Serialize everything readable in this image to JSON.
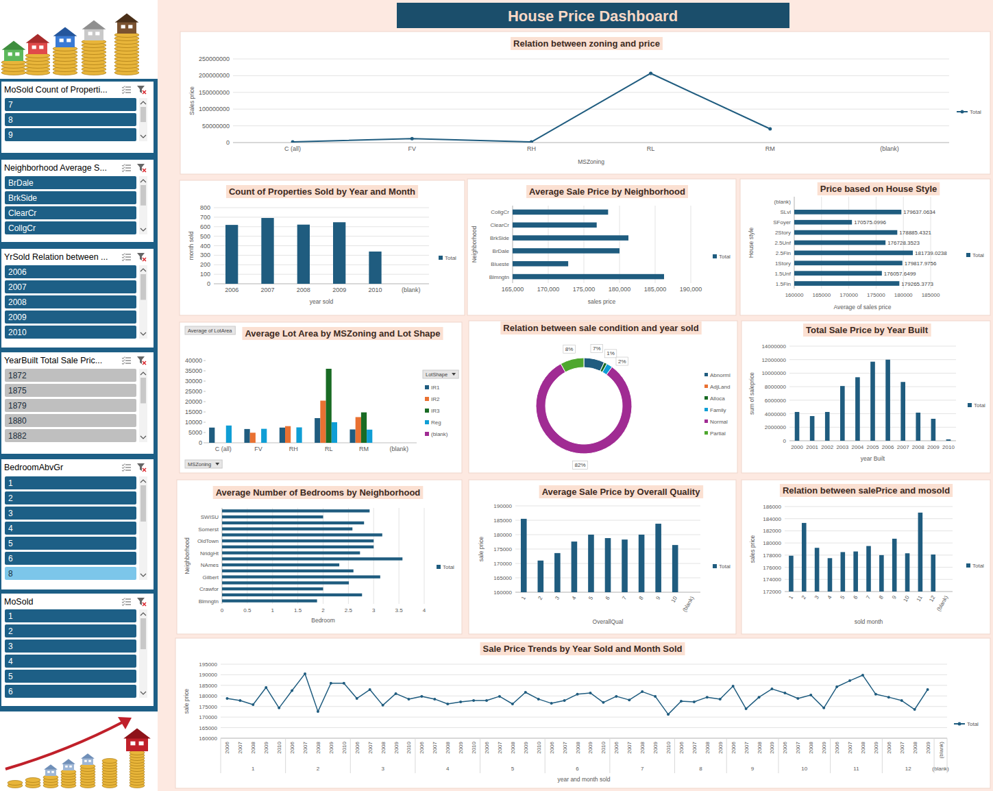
{
  "header": {
    "title": "House Price Dashboard"
  },
  "slicers": [
    {
      "title": "MoSold Count of Properti...",
      "items": [
        "7",
        "8",
        "9"
      ],
      "colors": [
        "#1d5f86",
        "#1d5f86",
        "#1d5f86"
      ]
    },
    {
      "title": "Neighborhood Average S...",
      "items": [
        "BrDale",
        "BrkSide",
        "ClearCr",
        "CollgCr"
      ],
      "colors": [
        "#1d5f86",
        "#1d5f86",
        "#1d5f86",
        "#1d5f86"
      ]
    },
    {
      "title": "YrSold Relation between ...",
      "items": [
        "2006",
        "2007",
        "2008",
        "2009",
        "2010"
      ],
      "colors": [
        "#1d5f86",
        "#1d5f86",
        "#1d5f86",
        "#1d5f86",
        "#1d5f86"
      ]
    },
    {
      "title": "YearBuilt Total Sale Pric...",
      "items": [
        "1872",
        "1875",
        "1879",
        "1880",
        "1882"
      ],
      "colors": [
        "#bfbfbf",
        "#bfbfbf",
        "#bfbfbf",
        "#bfbfbf",
        "#bfbfbf"
      ]
    },
    {
      "title": "BedroomAbvGr",
      "items": [
        "1",
        "2",
        "3",
        "4",
        "5",
        "6",
        "8"
      ],
      "colors": [
        "#1d5f86",
        "#1d5f86",
        "#1d5f86",
        "#1d5f86",
        "#1d5f86",
        "#1d5f86",
        "#7cc6ea"
      ]
    },
    {
      "title": "MoSold",
      "items": [
        "1",
        "2",
        "3",
        "4",
        "5",
        "6"
      ],
      "colors": [
        "#1d5f86",
        "#1d5f86",
        "#1d5f86",
        "#1d5f86",
        "#1d5f86",
        "#1d5f86"
      ]
    }
  ],
  "chart_data": [
    {
      "type": "line",
      "title": "Relation between zoning and price",
      "xlabel": "MSZoning",
      "ylabel": "Sales price",
      "categories": [
        "C (all)",
        "FV",
        "RH",
        "RL",
        "RM",
        "(blank)"
      ],
      "series": [
        {
          "name": "Total",
          "color": "#1f5c7f",
          "marker": "circle",
          "values": [
            2000000,
            12000000,
            2000000,
            207000000,
            41000000,
            null
          ]
        }
      ],
      "ylim": [
        0,
        250000000
      ],
      "yticks": [
        0,
        50000000,
        100000000,
        150000000,
        200000000,
        250000000
      ],
      "grid": true,
      "legend": "right"
    },
    {
      "type": "bar",
      "title": "Count of Properties Sold by Year and Month",
      "xlabel": "year sold",
      "ylabel": "month sold",
      "categories": [
        "2006",
        "2007",
        "2008",
        "2009",
        "2010",
        "(blank)"
      ],
      "series": [
        {
          "name": "Total",
          "color": "#1f5c7f",
          "values": [
            619,
            692,
            622,
            647,
            339,
            null
          ]
        }
      ],
      "ylim": [
        0,
        800
      ],
      "yticks": [
        0,
        100,
        200,
        300,
        400,
        500,
        600,
        700,
        800
      ],
      "grid": true,
      "legend": "right"
    },
    {
      "type": "bar",
      "orientation": "horizontal",
      "title": "Average Sale Price by Neighborhood",
      "xlabel": "sales price",
      "ylabel": "Neighborhood",
      "categories": [
        "Blmngtn",
        "Blueste",
        "BrDale",
        "BrkSide",
        "ClearCr",
        "CollgCr"
      ],
      "series": [
        {
          "name": "Total",
          "color": "#1f5c7f",
          "values": [
            186250,
            172800,
            180000,
            181250,
            176800,
            178400
          ]
        }
      ],
      "xlim": [
        165000,
        190000
      ],
      "xticks": [
        {
          "value": 165000,
          "label": "165,000"
        },
        {
          "value": 170000,
          "label": "170,000"
        },
        {
          "value": 175000,
          "label": "175,000"
        },
        {
          "value": 180000,
          "label": "180,000"
        },
        {
          "value": 185000,
          "label": "185,000"
        },
        {
          "value": 190000,
          "label": "190,000"
        }
      ],
      "grid": true,
      "legend": "right"
    },
    {
      "type": "bar",
      "orientation": "horizontal",
      "title": "Price based on House Style",
      "xlabel": "Average of sales price",
      "ylabel": "House style",
      "categories": [
        "1.5Fin",
        "1.5Unf",
        "1Story",
        "2.5Fin",
        "2.5Unf",
        "2Story",
        "SFoyer",
        "SLvl",
        "(blank)"
      ],
      "series": [
        {
          "name": "Total",
          "color": "#1f5c7f",
          "values": [
            179265.3773,
            176057.6499,
            179817.9756,
            181739.0238,
            176728.3523,
            178885.4321,
            170575.0996,
            179637.0634,
            null
          ]
        }
      ],
      "xlim": [
        160000,
        185000
      ],
      "xticks": [
        160000,
        165000,
        170000,
        175000,
        180000,
        185000
      ],
      "data_labels": true,
      "grid": true,
      "legend": "right"
    },
    {
      "type": "bar",
      "title": "Average Lot Area by MSZoning and Lot Shape",
      "xlabel": "MSZoning",
      "ylabel": "Average of LotArea",
      "legend_title": "LotShape",
      "categories": [
        "C (all)",
        "FV",
        "RH",
        "RL",
        "RM",
        "(blank)"
      ],
      "series": [
        {
          "name": "IR1",
          "color": "#1f5c7f",
          "values": [
            7400,
            6700,
            7400,
            12000,
            6500,
            null
          ]
        },
        {
          "name": "IR2",
          "color": "#e97132",
          "values": [
            null,
            4900,
            8100,
            20500,
            12500,
            null
          ]
        },
        {
          "name": "IR3",
          "color": "#196b24",
          "values": [
            null,
            null,
            null,
            36000,
            14800,
            null
          ]
        },
        {
          "name": "Reg",
          "color": "#0f9ed5",
          "values": [
            8400,
            6800,
            7500,
            10000,
            6400,
            null
          ]
        },
        {
          "name": "(blank)",
          "color": "#a02b93",
          "values": [
            null,
            null,
            null,
            null,
            null,
            null
          ]
        }
      ],
      "ylim": [
        0,
        40000
      ],
      "yticks": [
        0,
        5000,
        10000,
        15000,
        20000,
        25000,
        30000,
        35000,
        40000
      ],
      "legend": "right"
    },
    {
      "type": "donut",
      "title": "Relation between sale condition and year sold",
      "categories": [
        "Abnorml",
        "AdjLand",
        "Alloca",
        "Family",
        "Normal",
        "Partial"
      ],
      "values": [
        7,
        0,
        1,
        2,
        82,
        8
      ],
      "value_labels": [
        "7%",
        null,
        "1%",
        "2%",
        "82%",
        "8%"
      ],
      "colors": [
        "#1f5c7f",
        "#e97132",
        "#196b24",
        "#0f9ed5",
        "#a02b93",
        "#4ea72e"
      ],
      "data_labels": true,
      "legend": "right"
    },
    {
      "type": "bar",
      "title": "Total Sale Price by Year Built",
      "xlabel": "year Built",
      "ylabel": "sum of saleprice",
      "categories": [
        "2000",
        "2001",
        "2002",
        "2003",
        "2004",
        "2005",
        "2006",
        "2007",
        "2008",
        "2009",
        "2010"
      ],
      "series": [
        {
          "name": "Total",
          "color": "#1f5c7f",
          "values": [
            4260000,
            3650000,
            4260000,
            8100000,
            9400000,
            11700000,
            12000000,
            8700000,
            4160000,
            3250000,
            200000
          ]
        }
      ],
      "ylim": [
        0,
        14000000
      ],
      "yticks": [
        0,
        2000000,
        4000000,
        6000000,
        8000000,
        10000000,
        12000000,
        14000000
      ],
      "grid": true,
      "legend": "right"
    },
    {
      "type": "bar",
      "orientation": "horizontal",
      "title": "Average Number of Bedrooms by Neighborhood",
      "xlabel": "Bedroom",
      "ylabel": "Neighborhood",
      "categories": [
        "Blmngtn",
        null,
        "Crawfor",
        null,
        "Gilbert",
        null,
        "NAmes",
        null,
        "NridgHt",
        null,
        "OldTown",
        null,
        "Somerst",
        null,
        "SWISU",
        null
      ],
      "series": [
        {
          "name": "Total",
          "color": "#1f5c7f",
          "values": [
            1.88,
            2.77,
            2,
            2.51,
            3.13,
            2.6,
            2.32,
            3.57,
            2.73,
            3,
            3,
            3.17,
            2.58,
            2.81,
            2,
            2.92
          ]
        }
      ],
      "xlim": [
        0,
        4
      ],
      "xticks": [
        0,
        0.5,
        1,
        1.5,
        2,
        2.5,
        3,
        3.5,
        4
      ],
      "grid": true,
      "legend": "right"
    },
    {
      "type": "bar",
      "title": "Average Sale Price by Overall Quality",
      "xlabel": "OverallQual",
      "ylabel": "sale price",
      "categories": [
        "1",
        "2",
        "3",
        "4",
        "5",
        "6",
        "7",
        "8",
        "9",
        "10",
        "(blank)"
      ],
      "series": [
        {
          "name": "Total",
          "color": "#1f5c7f",
          "values": [
            185500,
            171000,
            173600,
            177600,
            180000,
            178800,
            178300,
            180000,
            183800,
            176400,
            null
          ]
        }
      ],
      "ylim": [
        160000,
        190000
      ],
      "yticks": [
        160000,
        165000,
        170000,
        175000,
        180000,
        185000,
        190000
      ],
      "grid": true,
      "legend": "right"
    },
    {
      "type": "bar",
      "title": "Relation between salePrice and mosold",
      "xlabel": "sold month",
      "ylabel": "sales price",
      "categories": [
        "1",
        "2",
        "3",
        "4",
        "5",
        "6",
        "7",
        "8",
        "9",
        "10",
        "11",
        "12",
        "(blank)"
      ],
      "series": [
        {
          "name": "Total",
          "color": "#1f5c7f",
          "values": [
            177900,
            183300,
            179200,
            177500,
            178500,
            178600,
            179500,
            178000,
            180700,
            178300,
            185000,
            178100,
            null
          ]
        }
      ],
      "ylim": [
        172000,
        186000
      ],
      "yticks": [
        172000,
        174000,
        176000,
        178000,
        180000,
        182000,
        184000,
        186000
      ],
      "grid": true,
      "legend": "right"
    },
    {
      "type": "line",
      "title": "Sale Price Trends by Year Sold and Month Sold",
      "xlabel": "year and month sold",
      "ylabel": "sale price",
      "categories": [
        "2006",
        "2007",
        "2008",
        "2009",
        "2010",
        "2006",
        "2007",
        "2008",
        "2009",
        "2010",
        "2006",
        "2007",
        "2008",
        "2009",
        "2010",
        "2006",
        "2007",
        "2008",
        "2009",
        "2010",
        "2006",
        "2007",
        "2008",
        "2009",
        "2010",
        "2006",
        "2007",
        "2008",
        "2009",
        "2010",
        "2006",
        "2007",
        "2008",
        "2009",
        "2010",
        "2006",
        "2007",
        "2008",
        "2009",
        "2006",
        "2007",
        "2008",
        "2009",
        "2006",
        "2007",
        "2008",
        "2009",
        "2006",
        "2007",
        "2008",
        "2009",
        "2006",
        "2007",
        "2008",
        "2009",
        "(blank)"
      ],
      "category_groups": [
        "1",
        "1",
        "1",
        "1",
        "1",
        "2",
        "2",
        "2",
        "2",
        "2",
        "3",
        "3",
        "3",
        "3",
        "3",
        "4",
        "4",
        "4",
        "4",
        "4",
        "5",
        "5",
        "5",
        "5",
        "5",
        "6",
        "6",
        "6",
        "6",
        "6",
        "7",
        "7",
        "7",
        "7",
        "7",
        "8",
        "8",
        "8",
        "8",
        "9",
        "9",
        "9",
        "9",
        "10",
        "10",
        "10",
        "10",
        "11",
        "11",
        "11",
        "11",
        "12",
        "12",
        "12",
        "12",
        "(blank)"
      ],
      "series": [
        {
          "name": "Total",
          "color": "#1f5c7f",
          "marker": "circle",
          "values": [
            178800,
            177800,
            175900,
            184000,
            174300,
            182500,
            190500,
            172600,
            186000,
            186000,
            178800,
            183000,
            175600,
            181100,
            178500,
            179800,
            178500,
            176200,
            177200,
            177800,
            177800,
            179800,
            176200,
            181700,
            178500,
            176500,
            177800,
            180800,
            181400,
            176900,
            179800,
            178100,
            182000,
            179800,
            171300,
            177500,
            177200,
            179400,
            178500,
            184600,
            173900,
            179400,
            183300,
            181400,
            178800,
            180400,
            174300,
            184300,
            187200,
            189800,
            180800,
            179400,
            177800,
            173600,
            183000,
            null
          ]
        }
      ],
      "ylim": [
        160000,
        195000
      ],
      "yticks": [
        160000,
        165000,
        170000,
        175000,
        180000,
        185000,
        190000,
        195000
      ],
      "grid": true,
      "legend": "right"
    }
  ]
}
